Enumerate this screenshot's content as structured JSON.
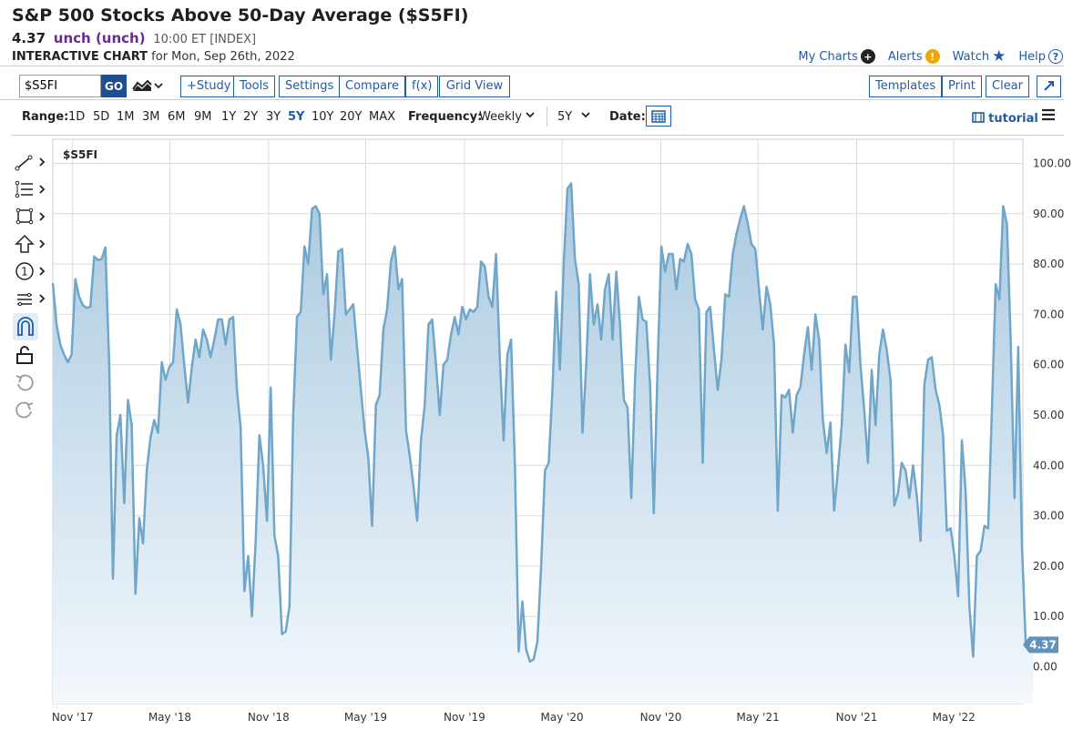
{
  "header": {
    "title": "S&P 500 Stocks Above 50-Day Average ($S5FI)",
    "value": "4.37",
    "change": "unch (unch)",
    "time_meta": "10:00 ET [INDEX]",
    "chart_label": "INTERACTIVE CHART",
    "date_line": "for Mon, Sep 26th, 2022"
  },
  "top_links": {
    "my_charts": "My Charts",
    "alerts": "Alerts",
    "watch": "Watch",
    "help": "Help",
    "colors": {
      "link": "#1e5ba8",
      "alert": "#f0a500"
    }
  },
  "toolbar": {
    "symbol_value": "$S5FI",
    "go_label": "GO",
    "study": "+Study",
    "tools": "Tools",
    "settings": "Settings",
    "compare": "Compare",
    "fx": "f(x)",
    "grid_view": "Grid View",
    "templates": "Templates",
    "print": "Print",
    "clear": "Clear"
  },
  "range_row": {
    "range_label": "Range:",
    "options": [
      "1D",
      "5D",
      "1M",
      "3M",
      "6M",
      "9M",
      "1Y",
      "2Y",
      "3Y",
      "5Y",
      "10Y",
      "20Y",
      "MAX"
    ],
    "active": "5Y",
    "frequency_label": "Frequency:",
    "frequency_value": "Weekly",
    "period_value": "5Y",
    "date_label": "Date:",
    "tutorial": "tutorial"
  },
  "side_tools": [
    "line-tool-icon",
    "fib-tool-icon",
    "rectangle-tool-icon",
    "arrow-tool-icon",
    "annotation-tool-icon",
    "channel-tool-icon",
    "magnet-icon",
    "lock-icon",
    "undo-icon",
    "redo-icon"
  ],
  "chart_data": {
    "type": "area",
    "symbol_label": "$S5FI",
    "last_value_label": "4.37",
    "ylim": [
      -7,
      100
    ],
    "yticks": [
      "100.00",
      "90.00",
      "80.00",
      "70.00",
      "60.00",
      "50.00",
      "40.00",
      "30.00",
      "20.00",
      "10.00",
      "0.00"
    ],
    "ytick_values": [
      100,
      90,
      80,
      70,
      60,
      50,
      40,
      30,
      20,
      10,
      0
    ],
    "xticks": [
      "Nov '17",
      "May '18",
      "Nov '18",
      "May '19",
      "Nov '19",
      "May '20",
      "Nov '20",
      "May '21",
      "Nov '21",
      "May '22"
    ],
    "xtick_dates": [
      "2017-11-01",
      "2018-05-01",
      "2018-11-01",
      "2019-05-01",
      "2019-11-01",
      "2020-05-01",
      "2020-11-01",
      "2021-05-01",
      "2021-11-01",
      "2022-05-01"
    ],
    "x_start": "2017-09-25",
    "x_end": "2022-10-31",
    "line_color": "#6fa6c9",
    "fill_top": "#a9c9e0",
    "fill_bottom": "#f3f8fc",
    "series": [
      {
        "points": [
          [
            "2017-09-25",
            76.2
          ],
          [
            "2017-10-02",
            68
          ],
          [
            "2017-10-09",
            64
          ],
          [
            "2017-10-16",
            62
          ],
          [
            "2017-10-23",
            60.5
          ],
          [
            "2017-10-30",
            62
          ],
          [
            "2017-11-06",
            77
          ],
          [
            "2017-11-13",
            73.5
          ],
          [
            "2017-11-20",
            71.8
          ],
          [
            "2017-11-27",
            71.3
          ],
          [
            "2017-12-04",
            71.5
          ],
          [
            "2017-12-11",
            81.5
          ],
          [
            "2017-12-18",
            80.8
          ],
          [
            "2017-12-25",
            81
          ],
          [
            "2018-01-01",
            83.3
          ],
          [
            "2018-01-08",
            60
          ],
          [
            "2018-01-15",
            17.5
          ],
          [
            "2018-01-22",
            46
          ],
          [
            "2018-01-29",
            50
          ],
          [
            "2018-02-05",
            32.5
          ],
          [
            "2018-02-12",
            53
          ],
          [
            "2018-02-19",
            48
          ],
          [
            "2018-02-26",
            14.5
          ],
          [
            "2018-03-05",
            29.5
          ],
          [
            "2018-03-12",
            24.5
          ],
          [
            "2018-03-19",
            39
          ],
          [
            "2018-03-26",
            45.5
          ],
          [
            "2018-04-02",
            49
          ],
          [
            "2018-04-09",
            46.5
          ],
          [
            "2018-04-16",
            60.5
          ],
          [
            "2018-04-23",
            57
          ],
          [
            "2018-04-30",
            59.5
          ],
          [
            "2018-05-07",
            60.5
          ],
          [
            "2018-05-14",
            71
          ],
          [
            "2018-05-21",
            68
          ],
          [
            "2018-05-28",
            60
          ],
          [
            "2018-06-04",
            52.5
          ],
          [
            "2018-06-11",
            59.5
          ],
          [
            "2018-06-18",
            65
          ],
          [
            "2018-06-25",
            61.5
          ],
          [
            "2018-07-02",
            67
          ],
          [
            "2018-07-09",
            65
          ],
          [
            "2018-07-16",
            61.5
          ],
          [
            "2018-07-23",
            65
          ],
          [
            "2018-07-30",
            69
          ],
          [
            "2018-08-06",
            69
          ],
          [
            "2018-08-13",
            64
          ],
          [
            "2018-08-20",
            69
          ],
          [
            "2018-08-27",
            69.5
          ],
          [
            "2018-09-03",
            55
          ],
          [
            "2018-09-10",
            47.5
          ],
          [
            "2018-09-17",
            15
          ],
          [
            "2018-09-24",
            22
          ],
          [
            "2018-10-01",
            10
          ],
          [
            "2018-10-08",
            25
          ],
          [
            "2018-10-15",
            46
          ],
          [
            "2018-10-22",
            40
          ],
          [
            "2018-10-29",
            29
          ],
          [
            "2018-11-05",
            55.5
          ],
          [
            "2018-11-12",
            26
          ],
          [
            "2018-11-19",
            22
          ],
          [
            "2018-11-26",
            6.5
          ],
          [
            "2018-12-03",
            7
          ],
          [
            "2018-12-10",
            12
          ],
          [
            "2018-12-17",
            50
          ],
          [
            "2018-12-24",
            69.5
          ],
          [
            "2018-12-31",
            70.5
          ],
          [
            "2019-01-07",
            83.5
          ],
          [
            "2019-01-14",
            80
          ],
          [
            "2019-01-21",
            91
          ],
          [
            "2019-01-28",
            91.5
          ],
          [
            "2019-02-04",
            90
          ],
          [
            "2019-02-11",
            74
          ],
          [
            "2019-02-18",
            78
          ],
          [
            "2019-02-25",
            61
          ],
          [
            "2019-03-04",
            70
          ],
          [
            "2019-03-11",
            82.5
          ],
          [
            "2019-03-18",
            83
          ],
          [
            "2019-03-25",
            70
          ],
          [
            "2019-04-01",
            71
          ],
          [
            "2019-04-08",
            72
          ],
          [
            "2019-04-15",
            63.5
          ],
          [
            "2019-04-22",
            55
          ],
          [
            "2019-04-29",
            47
          ],
          [
            "2019-05-06",
            41.5
          ],
          [
            "2019-05-13",
            28
          ],
          [
            "2019-05-20",
            52
          ],
          [
            "2019-05-27",
            54
          ],
          [
            "2019-06-03",
            67
          ],
          [
            "2019-06-10",
            71
          ],
          [
            "2019-06-17",
            80.5
          ],
          [
            "2019-06-24",
            83.5
          ],
          [
            "2019-07-01",
            75
          ],
          [
            "2019-07-08",
            77
          ],
          [
            "2019-07-15",
            47
          ],
          [
            "2019-07-22",
            42
          ],
          [
            "2019-07-29",
            36
          ],
          [
            "2019-08-05",
            29
          ],
          [
            "2019-08-12",
            45
          ],
          [
            "2019-08-19",
            52
          ],
          [
            "2019-08-26",
            68
          ],
          [
            "2019-09-02",
            69
          ],
          [
            "2019-09-09",
            60
          ],
          [
            "2019-09-16",
            50
          ],
          [
            "2019-09-23",
            60
          ],
          [
            "2019-09-30",
            61
          ],
          [
            "2019-10-07",
            66
          ],
          [
            "2019-10-14",
            69.5
          ],
          [
            "2019-10-21",
            66
          ],
          [
            "2019-10-28",
            71.5
          ],
          [
            "2019-11-04",
            69
          ],
          [
            "2019-11-11",
            71
          ],
          [
            "2019-11-18",
            70.5
          ],
          [
            "2019-11-25",
            71.5
          ],
          [
            "2019-12-02",
            80.5
          ],
          [
            "2019-12-09",
            79.5
          ],
          [
            "2019-12-16",
            73.5
          ],
          [
            "2019-12-23",
            71.5
          ],
          [
            "2019-12-30",
            82
          ],
          [
            "2020-01-06",
            61
          ],
          [
            "2020-01-13",
            45
          ],
          [
            "2020-01-20",
            62
          ],
          [
            "2020-01-27",
            65
          ],
          [
            "2020-02-03",
            40
          ],
          [
            "2020-02-10",
            3
          ],
          [
            "2020-02-17",
            13
          ],
          [
            "2020-02-24",
            3.5
          ],
          [
            "2020-03-02",
            1
          ],
          [
            "2020-03-09",
            1.5
          ],
          [
            "2020-03-16",
            5
          ],
          [
            "2020-03-23",
            20
          ],
          [
            "2020-03-30",
            39
          ],
          [
            "2020-04-06",
            40.5
          ],
          [
            "2020-04-13",
            55
          ],
          [
            "2020-04-20",
            74.5
          ],
          [
            "2020-04-27",
            59
          ],
          [
            "2020-05-04",
            80
          ],
          [
            "2020-05-11",
            95
          ],
          [
            "2020-05-18",
            96
          ],
          [
            "2020-05-25",
            81
          ],
          [
            "2020-06-01",
            76
          ],
          [
            "2020-06-08",
            46.5
          ],
          [
            "2020-06-15",
            60
          ],
          [
            "2020-06-22",
            78
          ],
          [
            "2020-06-29",
            68
          ],
          [
            "2020-07-06",
            72
          ],
          [
            "2020-07-13",
            65
          ],
          [
            "2020-07-20",
            75
          ],
          [
            "2020-07-27",
            78
          ],
          [
            "2020-08-03",
            65
          ],
          [
            "2020-08-10",
            78.5
          ],
          [
            "2020-08-17",
            68
          ],
          [
            "2020-08-24",
            53
          ],
          [
            "2020-08-31",
            51.5
          ],
          [
            "2020-09-07",
            33.5
          ],
          [
            "2020-09-14",
            57
          ],
          [
            "2020-09-21",
            73.5
          ],
          [
            "2020-09-28",
            69
          ],
          [
            "2020-10-05",
            68.5
          ],
          [
            "2020-10-12",
            56
          ],
          [
            "2020-10-19",
            30.5
          ],
          [
            "2020-10-26",
            60
          ],
          [
            "2020-11-02",
            83.5
          ],
          [
            "2020-11-09",
            78.5
          ],
          [
            "2020-11-16",
            82
          ],
          [
            "2020-11-23",
            82
          ],
          [
            "2020-11-30",
            75
          ],
          [
            "2020-12-07",
            81
          ],
          [
            "2020-12-14",
            80.5
          ],
          [
            "2020-12-21",
            84
          ],
          [
            "2020-12-28",
            82
          ],
          [
            "2021-01-04",
            73
          ],
          [
            "2021-01-11",
            71
          ],
          [
            "2021-01-18",
            40.5
          ],
          [
            "2021-01-25",
            70.5
          ],
          [
            "2021-02-01",
            71.5
          ],
          [
            "2021-02-08",
            63
          ],
          [
            "2021-02-15",
            55
          ],
          [
            "2021-02-22",
            61
          ],
          [
            "2021-03-01",
            74
          ],
          [
            "2021-03-08",
            73.5
          ],
          [
            "2021-03-15",
            82
          ],
          [
            "2021-03-22",
            86
          ],
          [
            "2021-03-29",
            89
          ],
          [
            "2021-04-05",
            91.5
          ],
          [
            "2021-04-12",
            88
          ],
          [
            "2021-04-19",
            84
          ],
          [
            "2021-04-26",
            83
          ],
          [
            "2021-05-03",
            75
          ],
          [
            "2021-05-10",
            67
          ],
          [
            "2021-05-17",
            75.5
          ],
          [
            "2021-05-24",
            72
          ],
          [
            "2021-05-31",
            64
          ],
          [
            "2021-06-07",
            31
          ],
          [
            "2021-06-14",
            54
          ],
          [
            "2021-06-21",
            53.5
          ],
          [
            "2021-06-28",
            55
          ],
          [
            "2021-07-05",
            46.5
          ],
          [
            "2021-07-12",
            54
          ],
          [
            "2021-07-19",
            55.5
          ],
          [
            "2021-07-26",
            62
          ],
          [
            "2021-08-02",
            67.5
          ],
          [
            "2021-08-09",
            59
          ],
          [
            "2021-08-16",
            70
          ],
          [
            "2021-08-23",
            65
          ],
          [
            "2021-08-30",
            49
          ],
          [
            "2021-09-06",
            42.5
          ],
          [
            "2021-09-13",
            48.5
          ],
          [
            "2021-09-20",
            31
          ],
          [
            "2021-09-27",
            39
          ],
          [
            "2021-10-04",
            48
          ],
          [
            "2021-10-11",
            64
          ],
          [
            "2021-10-18",
            58.5
          ],
          [
            "2021-10-25",
            73.5
          ],
          [
            "2021-11-01",
            73.5
          ],
          [
            "2021-11-08",
            60
          ],
          [
            "2021-11-15",
            51
          ],
          [
            "2021-11-22",
            40.5
          ],
          [
            "2021-11-29",
            59
          ],
          [
            "2021-12-06",
            48
          ],
          [
            "2021-12-13",
            62
          ],
          [
            "2021-12-20",
            67
          ],
          [
            "2021-12-27",
            63
          ],
          [
            "2022-01-03",
            57
          ],
          [
            "2022-01-10",
            32
          ],
          [
            "2022-01-17",
            34.5
          ],
          [
            "2022-01-24",
            40.5
          ],
          [
            "2022-01-31",
            39
          ],
          [
            "2022-02-07",
            33.5
          ],
          [
            "2022-02-14",
            40
          ],
          [
            "2022-02-21",
            34
          ],
          [
            "2022-02-28",
            25
          ],
          [
            "2022-03-07",
            56
          ],
          [
            "2022-03-14",
            61
          ],
          [
            "2022-03-21",
            61.5
          ],
          [
            "2022-03-28",
            55
          ],
          [
            "2022-04-04",
            52
          ],
          [
            "2022-04-11",
            46
          ],
          [
            "2022-04-18",
            27
          ],
          [
            "2022-04-25",
            27.5
          ],
          [
            "2022-05-02",
            22
          ],
          [
            "2022-05-09",
            14
          ],
          [
            "2022-05-16",
            45
          ],
          [
            "2022-05-23",
            35
          ],
          [
            "2022-05-30",
            12
          ],
          [
            "2022-06-06",
            2
          ],
          [
            "2022-06-13",
            22
          ],
          [
            "2022-06-20",
            23
          ],
          [
            "2022-06-27",
            28
          ],
          [
            "2022-07-04",
            27.5
          ],
          [
            "2022-07-11",
            51
          ],
          [
            "2022-07-18",
            76
          ],
          [
            "2022-07-25",
            73
          ],
          [
            "2022-08-01",
            91.5
          ],
          [
            "2022-08-08",
            88
          ],
          [
            "2022-08-15",
            65
          ],
          [
            "2022-08-22",
            33.5
          ],
          [
            "2022-08-29",
            63.5
          ],
          [
            "2022-09-05",
            24
          ],
          [
            "2022-09-12",
            4.5
          ],
          [
            "2022-09-19",
            4.37
          ],
          [
            "2022-09-26",
            4.37
          ]
        ]
      }
    ]
  }
}
